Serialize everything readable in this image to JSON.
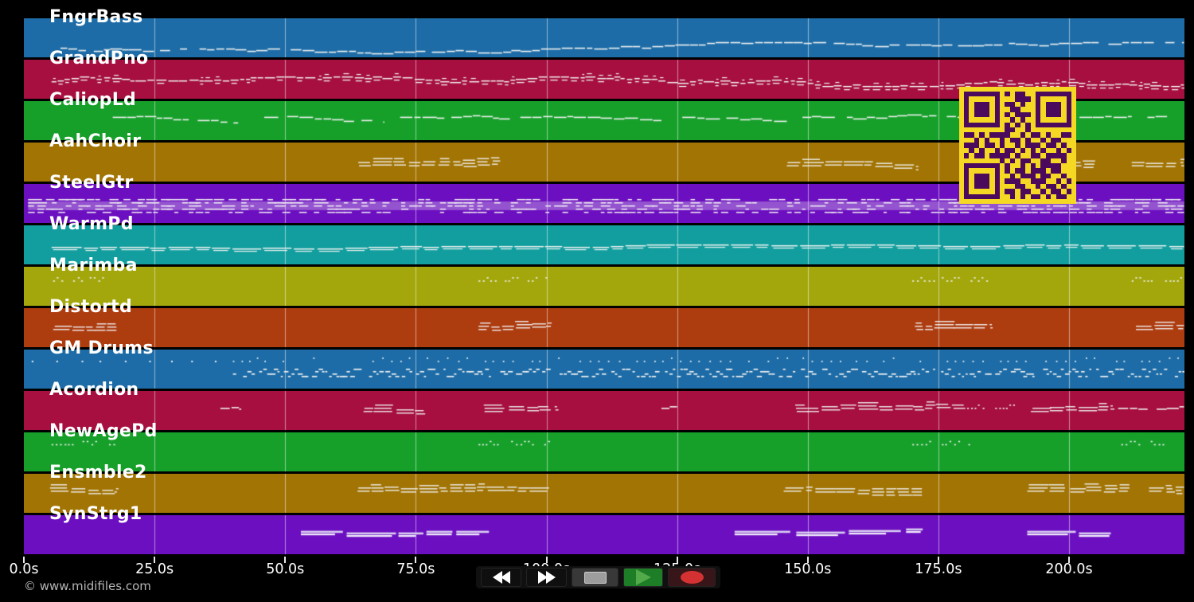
{
  "watermark": "© www.midifiles.com",
  "note_color": "#f1f1f1",
  "timeline": {
    "unit": "seconds",
    "start": 0,
    "end": 222,
    "tick_interval": 25,
    "ticks": [
      {
        "value": 0,
        "label": "0.0s"
      },
      {
        "value": 25,
        "label": "25.0s"
      },
      {
        "value": 50,
        "label": "50.0s"
      },
      {
        "value": 75,
        "label": "75.0s"
      },
      {
        "value": 100,
        "label": "100.0s"
      },
      {
        "value": 125,
        "label": "125.0s"
      },
      {
        "value": 150,
        "label": "150.0s"
      },
      {
        "value": 175,
        "label": "175.0s"
      },
      {
        "value": 200,
        "label": "200.0s"
      }
    ]
  },
  "tracks": [
    {
      "name": "FngrBass",
      "color": "#1d6ca7",
      "y": 0.75,
      "seed": 101,
      "segments": [
        {
          "from": 7,
          "to": 222,
          "style": "line"
        }
      ]
    },
    {
      "name": "GrandPno",
      "color": "#a60f3f",
      "y": 0.55,
      "seed": 202,
      "segments": [
        {
          "from": 5.3,
          "to": 222,
          "style": "dense2"
        }
      ]
    },
    {
      "name": "CaliopLd",
      "color": "#16a02a",
      "y": 0.4,
      "seed": 303,
      "segments": [
        {
          "from": 17,
          "to": 41,
          "style": "line"
        },
        {
          "from": 46,
          "to": 69,
          "style": "line"
        },
        {
          "from": 72,
          "to": 93,
          "style": "line"
        },
        {
          "from": 95,
          "to": 122,
          "style": "line"
        },
        {
          "from": 126,
          "to": 146,
          "style": "line"
        },
        {
          "from": 149,
          "to": 179,
          "style": "line"
        },
        {
          "from": 202,
          "to": 212,
          "style": "line"
        },
        {
          "from": 215,
          "to": 219,
          "style": "line"
        }
      ]
    },
    {
      "name": "AahChoir",
      "color": "#a27404",
      "y": 0.5,
      "seed": 404,
      "segments": [
        {
          "from": 64,
          "to": 91,
          "style": "chords"
        },
        {
          "from": 146,
          "to": 171,
          "style": "chords"
        },
        {
          "from": 199.5,
          "to": 205,
          "style": "chords"
        },
        {
          "from": 212,
          "to": 222,
          "style": "chords"
        }
      ]
    },
    {
      "name": "SteelGtr",
      "color": "#6c0fc0",
      "y": 0.55,
      "seed": 505,
      "segments": [
        {
          "from": 0.8,
          "to": 222,
          "style": "dense"
        }
      ]
    },
    {
      "name": "WarmPd",
      "color": "#129e9e",
      "y": 0.55,
      "seed": 606,
      "segments": [
        {
          "from": 5.3,
          "to": 222,
          "style": "duo"
        }
      ]
    },
    {
      "name": "Marimba",
      "color": "#a3a70c",
      "y": 0.35,
      "seed": 707,
      "segments": [
        {
          "from": 5.6,
          "to": 17,
          "style": "dots"
        },
        {
          "from": 87,
          "to": 100.5,
          "style": "dots"
        },
        {
          "from": 170,
          "to": 185,
          "style": "dots"
        },
        {
          "from": 212,
          "to": 222,
          "style": "dots"
        }
      ]
    },
    {
      "name": "Distortd",
      "color": "#ad3c0f",
      "y": 0.45,
      "seed": 808,
      "segments": [
        {
          "from": 5.6,
          "to": 18,
          "style": "chords"
        },
        {
          "from": 87,
          "to": 101,
          "style": "chords"
        },
        {
          "from": 170.5,
          "to": 185,
          "style": "chords"
        },
        {
          "from": 212.5,
          "to": 222,
          "style": "chords"
        }
      ]
    },
    {
      "name": "GM Drums",
      "color": "#1d6ca7",
      "y": 0.55,
      "seed": 909,
      "segments": [
        {
          "from": 1.5,
          "to": 40,
          "style": "drum_sparse"
        },
        {
          "from": 40,
          "to": 222,
          "style": "drums"
        }
      ]
    },
    {
      "name": "Acordion",
      "color": "#a60f3f",
      "y": 0.43,
      "seed": 1010,
      "segments": [
        {
          "from": 37.6,
          "to": 41.6,
          "style": "line"
        },
        {
          "from": 65,
          "to": 76.5,
          "style": "chords"
        },
        {
          "from": 88,
          "to": 102,
          "style": "chords"
        },
        {
          "from": 122,
          "to": 125,
          "style": "line"
        },
        {
          "from": 147.6,
          "to": 180,
          "style": "chords"
        },
        {
          "from": 180.5,
          "to": 192,
          "style": "dots"
        },
        {
          "from": 192.7,
          "to": 208.7,
          "style": "chords"
        },
        {
          "from": 209.4,
          "to": 222,
          "style": "line"
        }
      ]
    },
    {
      "name": "NewAgePd",
      "color": "#16a02a",
      "y": 0.3,
      "seed": 1111,
      "segments": [
        {
          "from": 5.3,
          "to": 17.2,
          "style": "dots"
        },
        {
          "from": 87,
          "to": 100.5,
          "style": "dots"
        },
        {
          "from": 170,
          "to": 181,
          "style": "dots"
        },
        {
          "from": 210,
          "to": 218,
          "style": "dots"
        }
      ]
    },
    {
      "name": "Ensmble2",
      "color": "#a27404",
      "y": 0.35,
      "seed": 1212,
      "segments": [
        {
          "from": 5,
          "to": 17.8,
          "style": "chords"
        },
        {
          "from": 63.7,
          "to": 100.5,
          "style": "chords"
        },
        {
          "from": 145.4,
          "to": 172,
          "style": "chords"
        },
        {
          "from": 192,
          "to": 211.7,
          "style": "chords"
        },
        {
          "from": 215,
          "to": 222,
          "style": "chords"
        }
      ]
    },
    {
      "name": "SynStrg1",
      "color": "#6c0fc0",
      "y": 0.4,
      "seed": 1313,
      "segments": [
        {
          "from": 53,
          "to": 89,
          "style": "thick"
        },
        {
          "from": 136,
          "to": 172,
          "style": "thick"
        },
        {
          "from": 192,
          "to": 208,
          "style": "thick"
        }
      ]
    }
  ],
  "transport": {
    "buttons": [
      {
        "id": "rewind",
        "icon": "rewind-icon",
        "bg": "#0f0f0f",
        "fg": "#ffffff"
      },
      {
        "id": "fast-forward",
        "icon": "fast-forward-icon",
        "bg": "#0f0f0f",
        "fg": "#ffffff"
      },
      {
        "id": "stop",
        "icon": "stop-icon",
        "bg": "#383838",
        "fg": "#9d9d9d"
      },
      {
        "id": "play",
        "icon": "play-icon",
        "bg": "#1e7e28",
        "fg": "#52aa4b"
      },
      {
        "id": "record",
        "icon": "record-icon",
        "bg": "#381518",
        "fg": "#d43232"
      }
    ]
  },
  "qr": {
    "light": "#f4d824",
    "dark": "#4c0a5c",
    "matrix": [
      "111111101011001111111",
      "100000100011101000001",
      "101110101101001011101",
      "101110100110001011101",
      "101110101011101011101",
      "100000100101001000001",
      "111111101010101111111",
      "000000001100100000000",
      "110101111001011010011",
      "001010010110100101100",
      "111011010010111011010",
      "010100101101010100101",
      "101101111010011011110",
      "000000010101100110010",
      "111111101001010111100",
      "100000101011011101100",
      "101110100101110110010",
      "101110101110011100101",
      "101110100011001011010",
      "100000101101100101101",
      "111111100101011010110"
    ]
  }
}
